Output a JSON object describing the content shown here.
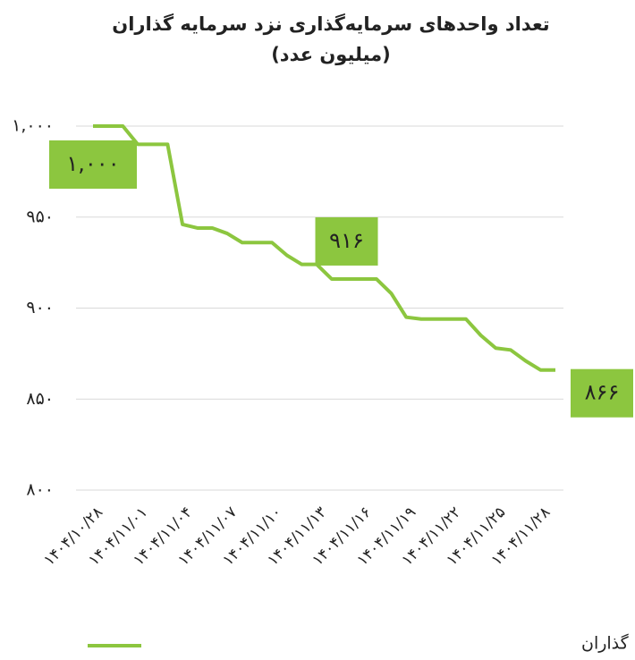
{
  "chart_data": {
    "type": "line",
    "title": "تعداد واحدهای سرمایه‌گذاری نزد سرمایه گذاران",
    "subtitle": "(میلیون عدد)",
    "categories": [
      "۱۴۰۴/۱۰/۲۸",
      null,
      null,
      "۱۴۰۴/۱۱/۰۱",
      null,
      null,
      "۱۴۰۴/۱۱/۰۴",
      null,
      null,
      "۱۴۰۴/۱۱/۰۷",
      null,
      null,
      "۱۴۰۴/۱۱/۱۰",
      null,
      null,
      "۱۴۰۴/۱۱/۱۳",
      null,
      null,
      "۱۴۰۴/۱۱/۱۶",
      null,
      null,
      "۱۴۰۴/۱۱/۱۹",
      null,
      null,
      "۱۴۰۴/۱۱/۲۲",
      null,
      null,
      "۱۴۰۴/۱۱/۲۵",
      null,
      null,
      "۱۴۰۴/۱۱/۲۸",
      null
    ],
    "series": [
      {
        "name": "تعداد واحدهای سرمایه‌گذاری نزد سرمایه گذاران",
        "color": "#8cc63f",
        "values": [
          1000,
          1000,
          1000,
          990,
          990,
          990,
          946,
          944,
          944,
          941,
          936,
          936,
          936,
          929,
          924,
          924,
          916,
          916,
          916,
          916,
          908,
          895,
          894,
          894,
          894,
          894,
          885,
          878,
          877,
          871,
          866,
          866
        ],
        "value_labels": [
          "۱,۰۰۰",
          null,
          null,
          null,
          null,
          null,
          null,
          null,
          null,
          null,
          null,
          null,
          null,
          null,
          null,
          null,
          null,
          "۹۱۶",
          null,
          null,
          null,
          null,
          null,
          null,
          null,
          null,
          null,
          null,
          null,
          null,
          null,
          "۸۶۶"
        ]
      }
    ],
    "ylim": [
      800,
      1000
    ],
    "yticks": [
      {
        "value": 800,
        "label": "۸۰۰"
      },
      {
        "value": 850,
        "label": "۸۵۰"
      },
      {
        "value": 900,
        "label": "۹۰۰"
      },
      {
        "value": 950,
        "label": "۹۵۰"
      },
      {
        "value": 1000,
        "label": "۱,۰۰۰"
      }
    ],
    "grid": true,
    "legend": "bottom"
  }
}
